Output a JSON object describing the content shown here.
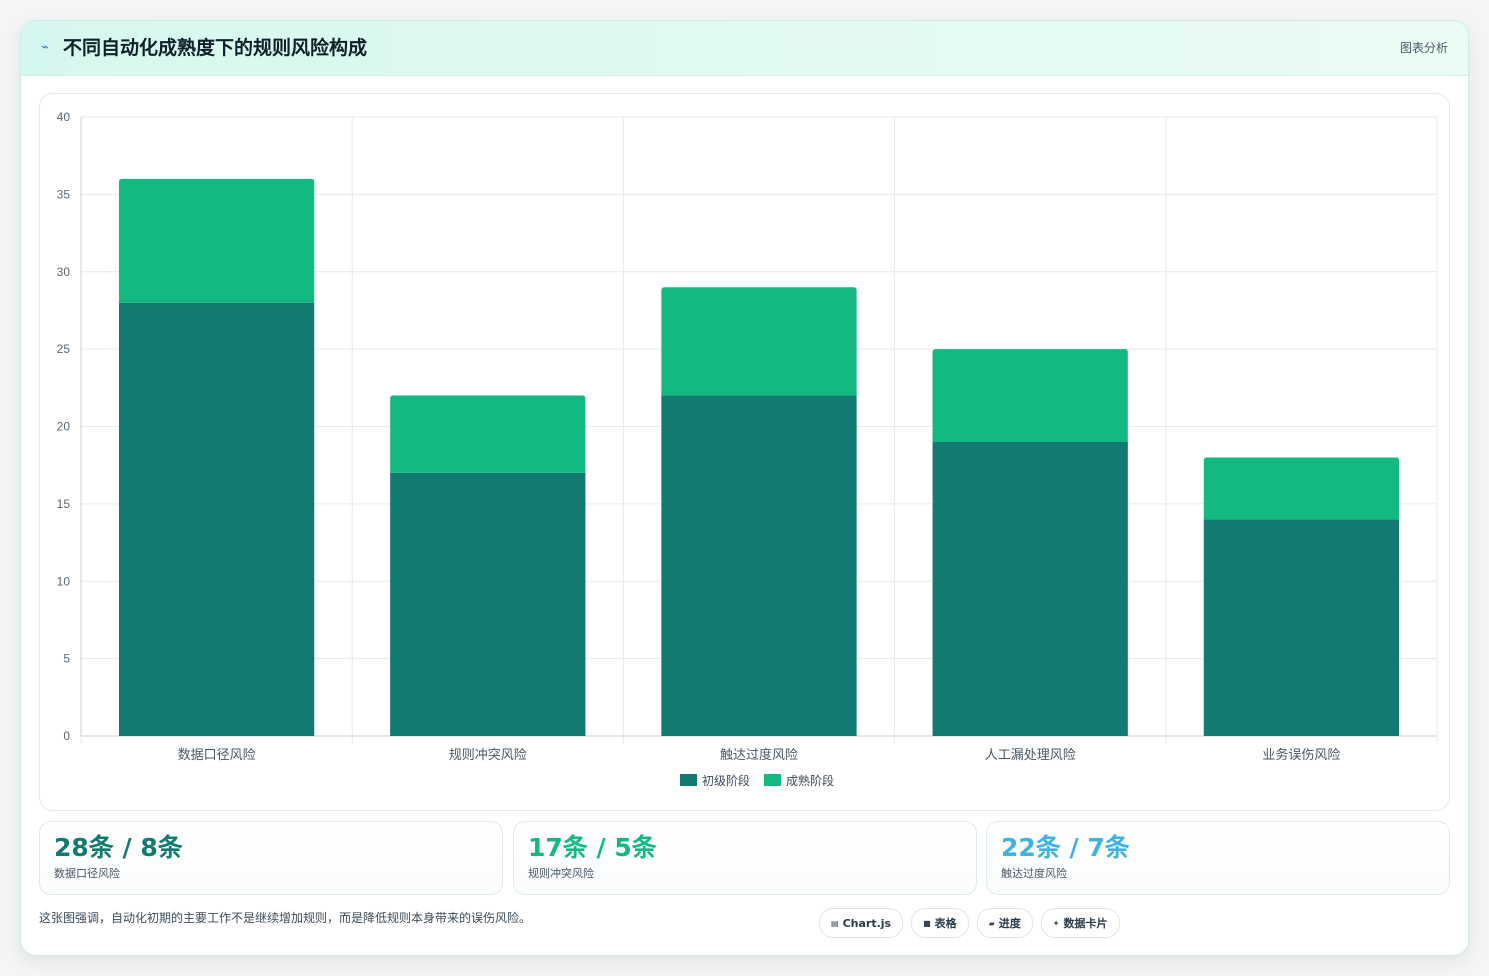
{
  "header": {
    "icon": "lightning-icon",
    "title": "不同自动化成熟度下的规则风险构成",
    "tag": "图表分析"
  },
  "chart_data": {
    "type": "bar",
    "stacked": true,
    "title": "",
    "xlabel": "",
    "ylabel": "",
    "categories": [
      "数据口径风险",
      "规则冲突风险",
      "触达过度风险",
      "人工漏处理风险",
      "业务误伤风险"
    ],
    "series": [
      {
        "name": "初级阶段",
        "color": "#127a70",
        "values": [
          28,
          17,
          22,
          19,
          14
        ]
      },
      {
        "name": "成熟阶段",
        "color": "#14b981",
        "values": [
          8,
          5,
          7,
          6,
          4
        ]
      }
    ],
    "ylim": [
      0,
      40
    ],
    "yticks": [
      0,
      5,
      10,
      15,
      20,
      25,
      30,
      35,
      40
    ],
    "grid": true,
    "legend": "bottom"
  },
  "stats": [
    {
      "value": "28条 / 8条",
      "label": "数据口径风险",
      "color": "#127a70"
    },
    {
      "value": "17条 / 5条",
      "label": "规则冲突风险",
      "color": "#14b981"
    },
    {
      "value": "22条 / 7条",
      "label": "触达过度风险",
      "color": "#3fb3e0"
    }
  ],
  "footnote": "这张图强调，自动化初期的主要工作不是继续增加规则，而是降低规则本身带来的误伤风险。",
  "pills": [
    {
      "icon": "chart-icon",
      "glyph": "▤",
      "label": "Chart.js"
    },
    {
      "icon": "table-icon",
      "glyph": "■",
      "label": "表格"
    },
    {
      "icon": "progress-icon",
      "glyph": "▰",
      "label": "进度"
    },
    {
      "icon": "sparkle-icon",
      "glyph": "✦",
      "label": "数据卡片"
    }
  ]
}
